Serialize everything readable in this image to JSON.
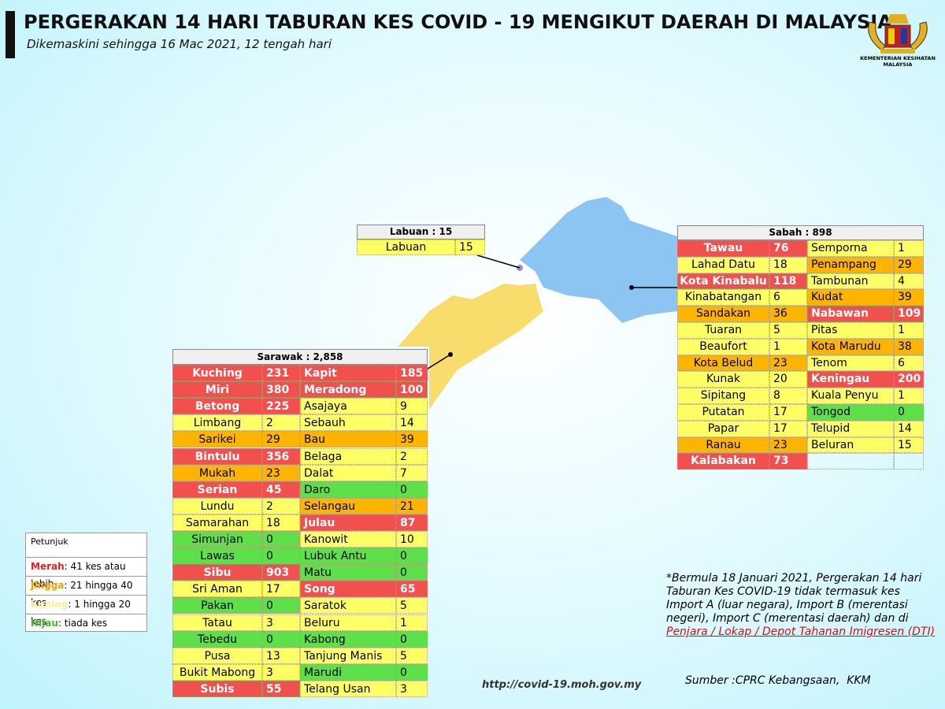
{
  "header": {
    "title": "PERGERAKAN 14 HARI TABURAN KES COVID - 19 MENGIKUT DAERAH DI MALAYSIA",
    "subtitle": "Dikemaskini sehingga 16 Mac 2021, 12 tengah hari",
    "logo_text": "KEMENTERIAN KESIHATAN MALAYSIA"
  },
  "tables": [
    {
      "title": "Labuan : 15",
      "rows": [
        [
          {
            "district": "Labuan",
            "cases": 15,
            "color": "#ffff66"
          }
        ]
      ]
    },
    {
      "title": "Sabah : 898",
      "rows": [
        [
          {
            "district": "Tawau",
            "cases": 76,
            "color": "#f24f4f"
          },
          {
            "district": "Semporna",
            "cases": 1,
            "color": "#ffff66"
          }
        ],
        [
          {
            "district": "Lahad Datu",
            "cases": 18,
            "color": "#ffff66"
          },
          {
            "district": "Penampang",
            "cases": 29,
            "color": "#ffb400"
          }
        ],
        [
          {
            "district": "Kota Kinabalu",
            "cases": 118,
            "color": "#f24f4f"
          },
          {
            "district": "Tambunan",
            "cases": 4,
            "color": "#ffff66"
          }
        ],
        [
          {
            "district": "Kinabatangan",
            "cases": 6,
            "color": "#ffff66"
          },
          {
            "district": "Kudat",
            "cases": 39,
            "color": "#ffb400"
          }
        ],
        [
          {
            "district": "Sandakan",
            "cases": 36,
            "color": "#ffb400"
          },
          {
            "district": "Nabawan",
            "cases": 109,
            "color": "#f24f4f"
          }
        ],
        [
          {
            "district": "Tuaran",
            "cases": 5,
            "color": "#ffff66"
          },
          {
            "district": "Pitas",
            "cases": 1,
            "color": "#ffff66"
          }
        ],
        [
          {
            "district": "Beaufort",
            "cases": 1,
            "color": "#ffff66"
          },
          {
            "district": "Kota Marudu",
            "cases": 38,
            "color": "#ffb400"
          }
        ],
        [
          {
            "district": "Kota Belud",
            "cases": 23,
            "color": "#ffb400"
          },
          {
            "district": "Tenom",
            "cases": 6,
            "color": "#ffff66"
          }
        ],
        [
          {
            "district": "Kunak",
            "cases": 20,
            "color": "#ffff66"
          },
          {
            "district": "Keningau",
            "cases": 200,
            "color": "#f24f4f"
          }
        ],
        [
          {
            "district": "Sipitang",
            "cases": 8,
            "color": "#ffff66"
          },
          {
            "district": "Kuala Penyu",
            "cases": 1,
            "color": "#ffff66"
          }
        ],
        [
          {
            "district": "Putatan",
            "cases": 17,
            "color": "#ffff66"
          },
          {
            "district": "Tongod",
            "cases": 0,
            "color": "#5ee04a"
          }
        ],
        [
          {
            "district": "Papar",
            "cases": 17,
            "color": "#ffff66"
          },
          {
            "district": "Telupid",
            "cases": 14,
            "color": "#ffff66"
          }
        ],
        [
          {
            "district": "Ranau",
            "cases": 23,
            "color": "#ffb400"
          },
          {
            "district": "Beluran",
            "cases": 15,
            "color": "#ffff66"
          }
        ],
        [
          {
            "district": "Kalabakan",
            "cases": 73,
            "color": "#f24f4f"
          }
        ]
      ]
    },
    {
      "title": "Sarawak : 2,858",
      "rows": [
        [
          {
            "district": "Kuching",
            "cases": 231,
            "color": "#f24f4f"
          },
          {
            "district": "Kapit",
            "cases": 185,
            "color": "#f24f4f"
          }
        ],
        [
          {
            "district": "Miri",
            "cases": 380,
            "color": "#f24f4f"
          },
          {
            "district": "Meradong",
            "cases": 100,
            "color": "#f24f4f"
          }
        ],
        [
          {
            "district": "Betong",
            "cases": 225,
            "color": "#f24f4f"
          },
          {
            "district": "Asajaya",
            "cases": 9,
            "color": "#ffff66"
          }
        ],
        [
          {
            "district": "Limbang",
            "cases": 2,
            "color": "#ffff66"
          },
          {
            "district": "Sebauh",
            "cases": 14,
            "color": "#ffff66"
          }
        ],
        [
          {
            "district": "Sarikei",
            "cases": 29,
            "color": "#ffb400"
          },
          {
            "district": "Bau",
            "cases": 39,
            "color": "#ffb400"
          }
        ],
        [
          {
            "district": "Bintulu",
            "cases": 356,
            "color": "#f24f4f"
          },
          {
            "district": "Belaga",
            "cases": 2,
            "color": "#ffff66"
          }
        ],
        [
          {
            "district": "Mukah",
            "cases": 23,
            "color": "#ffb400"
          },
          {
            "district": "Dalat",
            "cases": 7,
            "color": "#ffff66"
          }
        ],
        [
          {
            "district": "Serian",
            "cases": 45,
            "color": "#f24f4f"
          },
          {
            "district": "Daro",
            "cases": 0,
            "color": "#5ee04a"
          }
        ],
        [
          {
            "district": "Lundu",
            "cases": 2,
            "color": "#ffff66"
          },
          {
            "district": "Selangau",
            "cases": 21,
            "color": "#ffb400"
          }
        ],
        [
          {
            "district": "Samarahan",
            "cases": 18,
            "color": "#ffff66"
          },
          {
            "district": "Julau",
            "cases": 87,
            "color": "#f24f4f"
          }
        ],
        [
          {
            "district": "Simunjan",
            "cases": 0,
            "color": "#5ee04a"
          },
          {
            "district": "Kanowit",
            "cases": 10,
            "color": "#ffff66"
          }
        ],
        [
          {
            "district": "Lawas",
            "cases": 0,
            "color": "#5ee04a"
          },
          {
            "district": "Lubuk Antu",
            "cases": 0,
            "color": "#5ee04a"
          }
        ],
        [
          {
            "district": "Sibu",
            "cases": 903,
            "color": "#f24f4f"
          },
          {
            "district": "Matu",
            "cases": 0,
            "color": "#5ee04a"
          }
        ],
        [
          {
            "district": "Sri Aman",
            "cases": 17,
            "color": "#ffff66"
          },
          {
            "district": "Song",
            "cases": 65,
            "color": "#f24f4f"
          }
        ],
        [
          {
            "district": "Pakan",
            "cases": 0,
            "color": "#5ee04a"
          },
          {
            "district": "Saratok",
            "cases": 5,
            "color": "#ffff66"
          }
        ],
        [
          {
            "district": "Tatau",
            "cases": 3,
            "color": "#ffff66"
          },
          {
            "district": "Beluru",
            "cases": 1,
            "color": "#ffff66"
          }
        ],
        [
          {
            "district": "Tebedu",
            "cases": 0,
            "color": "#5ee04a"
          },
          {
            "district": "Kabong",
            "cases": 0,
            "color": "#5ee04a"
          }
        ],
        [
          {
            "district": "Pusa",
            "cases": 13,
            "color": "#ffff66"
          },
          {
            "district": "Tanjung Manis",
            "cases": 5,
            "color": "#ffff66"
          }
        ],
        [
          {
            "district": "Bukit Mabong",
            "cases": 3,
            "color": "#ffff66"
          },
          {
            "district": "Marudi",
            "cases": 0,
            "color": "#5ee04a"
          }
        ],
        [
          {
            "district": "Subis",
            "cases": 55,
            "color": "#f24f4f"
          },
          {
            "district": "Telang Usan",
            "cases": 3,
            "color": "#ffff66"
          }
        ]
      ]
    }
  ],
  "legend": {
    "title": "Petunjuk",
    "items": [
      {
        "name": "Merah",
        "text": ": 41 kes atau lebih",
        "color": "#e02020"
      },
      {
        "name": "Jingga",
        "text": ": 21 hingga 40 kes",
        "color": "#f0a000"
      },
      {
        "name": "Kuning",
        "text": ": 1 hingga 20 kes",
        "color": "#f4f0a0"
      },
      {
        "name": "Hijau",
        "text": ": tiada kes",
        "color": "#50b030"
      }
    ]
  },
  "note": {
    "text": "*Bermula 18 Januari 2021, Pergerakan 14 hari Taburan Kes COVID-19 tidak termasuk kes Import A (luar negara), Import B (merentasi negeri), Import C (merentasi daerah) dan di ",
    "highlight": "Penjara / Lokap / Depot Tahanan Imigresen (DTI)"
  },
  "url": "http://covid-19.moh.gov.my",
  "source": "Sumber :CPRC Kebangsaan,  KKM"
}
